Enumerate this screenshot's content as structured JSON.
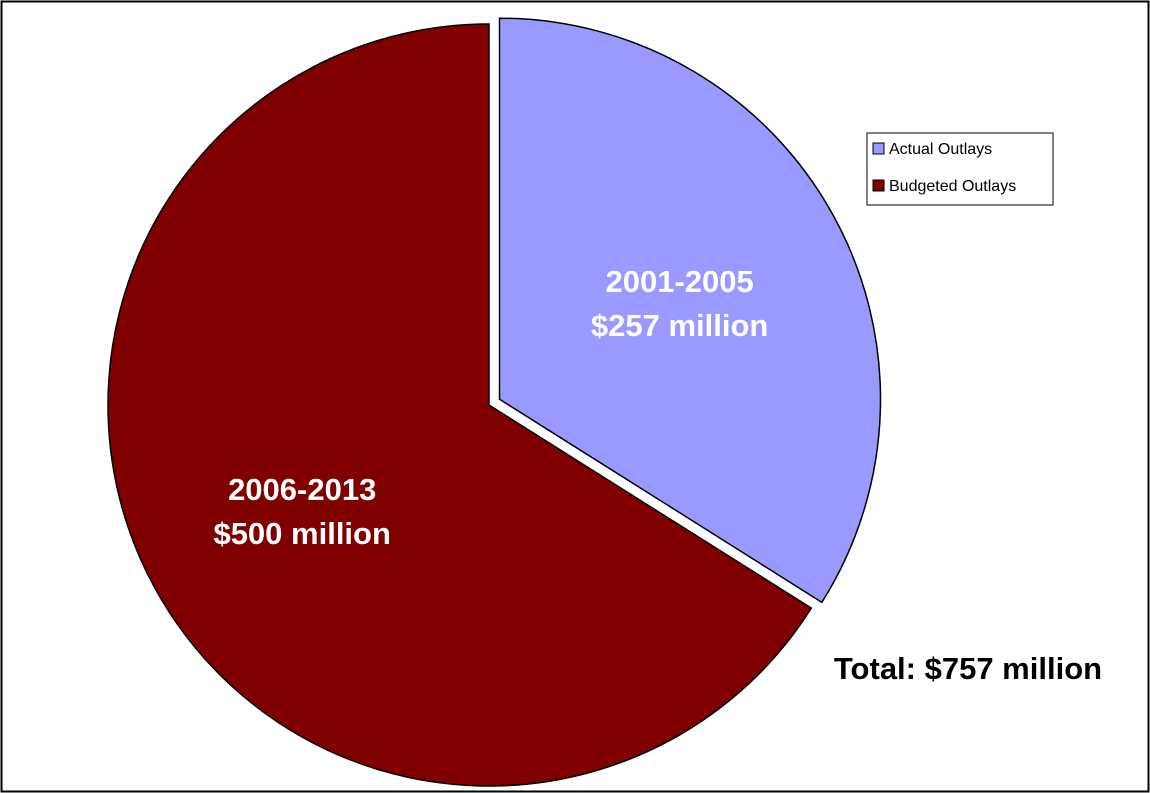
{
  "chart_data": {
    "type": "pie",
    "categories": [
      "Actual Outlays",
      "Budgeted Outlays"
    ],
    "values": [
      257,
      500
    ],
    "unit": "$ million",
    "slices": [
      {
        "series": "Actual Outlays",
        "period": "2001-2005",
        "amount_label": "$257 million",
        "value": 257,
        "color": "#9999FF",
        "exploded": true
      },
      {
        "series": "Budgeted Outlays",
        "period": "2006-2013",
        "amount_label": "$500 million",
        "value": 500,
        "color": "#800000",
        "exploded": false
      }
    ],
    "legend": {
      "placement": "right",
      "entries": [
        {
          "label": "Actual Outlays",
          "color": "#9999FF"
        },
        {
          "label": "Budgeted Outlays",
          "color": "#800000"
        }
      ]
    },
    "annotation": "Total: $757 million",
    "title": "",
    "text_colors": {
      "slice_label": "#FFFFFF",
      "annotation": "#000000"
    }
  }
}
